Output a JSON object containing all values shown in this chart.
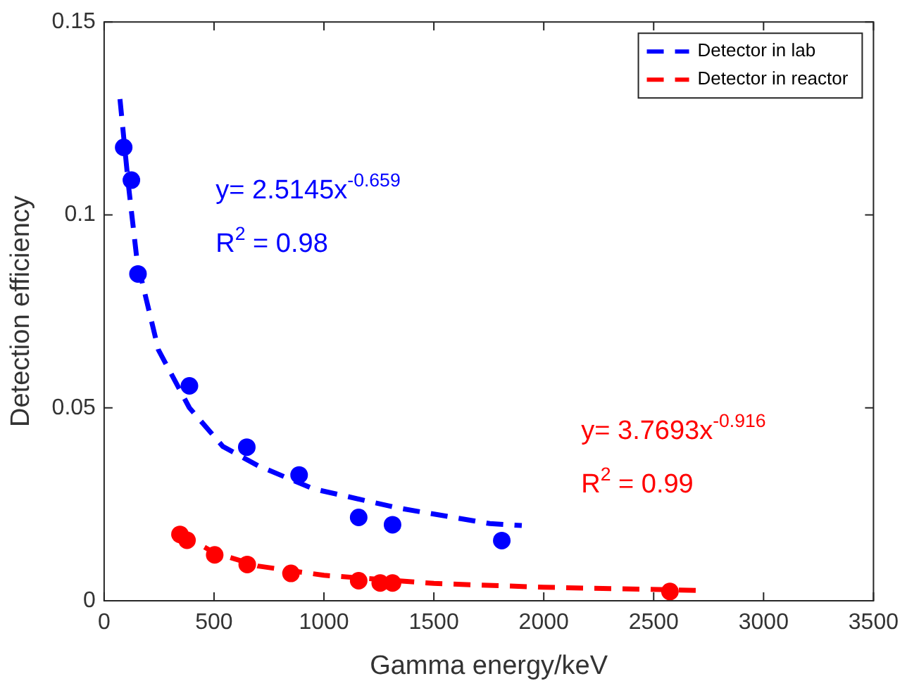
{
  "chart_data": {
    "type": "scatter",
    "xlabel": "Gamma energy/keV",
    "ylabel": "Detection efficiency",
    "xlim": [
      0,
      3500
    ],
    "xticks": [
      0,
      500,
      1000,
      1500,
      2000,
      2500,
      3000,
      3500
    ],
    "ylim": [
      0,
      0.15
    ],
    "yticks": [
      0,
      0.05,
      0.1,
      0.15
    ],
    "grid": false,
    "legend": "top right",
    "series": [
      {
        "type": "scatter",
        "marker": "circle",
        "color": "#0000ff",
        "x": [
          89,
          124,
          154,
          388,
          649,
          887,
          1158,
          1312,
          1809
        ],
        "values": [
          0.1175,
          0.109,
          0.0847,
          0.0557,
          0.0398,
          0.0326,
          0.0216,
          0.0197,
          0.0156
        ]
      },
      {
        "type": "line",
        "name": "Detector in lab",
        "marker": "none",
        "line_style": "dashed",
        "color": "#0000ff",
        "x": [
          72,
          110,
          150,
          247,
          388,
          540,
          700,
          952,
          1342,
          1755,
          1900
        ],
        "values": [
          0.13,
          0.108,
          0.088,
          0.065,
          0.05,
          0.04,
          0.035,
          0.029,
          0.024,
          0.02,
          0.0195
        ]
      },
      {
        "type": "scatter",
        "marker": "circle",
        "color": "#ff0000",
        "x": [
          345,
          377,
          503,
          651,
          850,
          1158,
          1256,
          1312,
          2574
        ],
        "values": [
          0.0172,
          0.0157,
          0.0119,
          0.0094,
          0.0071,
          0.0052,
          0.0046,
          0.0046,
          0.0024
        ]
      },
      {
        "type": "line",
        "name": "Detector in reactor",
        "marker": "none",
        "line_style": "dashed",
        "color": "#ff0000",
        "x": [
          345,
          500,
          700,
          1000,
          1500,
          2000,
          2700
        ],
        "values": [
          0.0175,
          0.0125,
          0.009,
          0.0066,
          0.0045,
          0.0035,
          0.0027
        ]
      }
    ],
    "annotations": [
      "y= 2.5145x$^{-0.659}$",
      "R$^{2}$ = 0.98",
      "y= 3.7693x$^{-0.916}$",
      "R$^{2}$ = 0.99"
    ]
  }
}
